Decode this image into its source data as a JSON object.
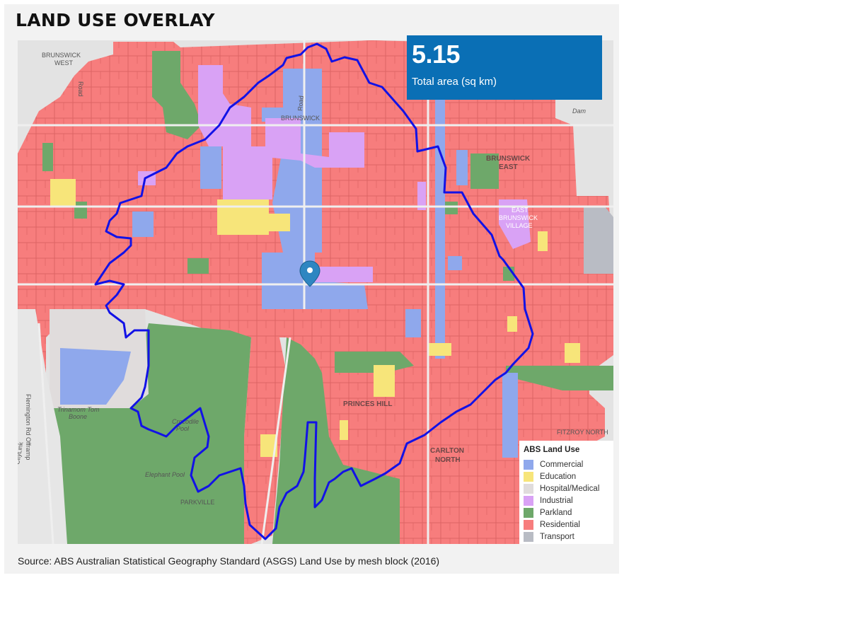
{
  "title": "LAND USE OVERLAY",
  "stat": {
    "value": "5.15",
    "label": "Total area (sq km)",
    "bg_color": "#0a6fb5"
  },
  "legend": {
    "title": "ABS Land Use",
    "items": [
      {
        "label": "Commercial",
        "color": "#8fa8ec"
      },
      {
        "label": "Education",
        "color": "#f7e57a"
      },
      {
        "label": "Hospital/Medical",
        "color": "#e0dcdc"
      },
      {
        "label": "Industrial",
        "color": "#d9a2f5"
      },
      {
        "label": "Parkland",
        "color": "#6ea86a"
      },
      {
        "label": "Residential",
        "color": "#f77d7d"
      },
      {
        "label": "Transport",
        "color": "#b9bcc4"
      }
    ]
  },
  "map_labels": {
    "brunswick_west": "BRUNSWICK WEST",
    "brunswick": "BRUNSWICK",
    "brunswick_east": "BRUNSWICK EAST",
    "east_brunswick_village": "EAST BRUNSWICK VILLAGE",
    "princes_hill": "PRINCES HILL",
    "carlton_north": "CARLTON NORTH",
    "fitzroy_north": "FITZROY NORTH",
    "parkville": "PARKVILLE",
    "dam": "Dam",
    "elephant_pool": "Elephant Pool",
    "crocodile_pool": "Crocodile Pool",
    "trin_tom": "Trinamom Tom Boone",
    "flemington": "Flemington Rd Offramp",
    "citylink": "CityLink",
    "road": "Road",
    "road2": "Road"
  },
  "source": "Source: ABS Australian Statistical Geography Standard (ASGS) Land Use by mesh block (2016)",
  "boundary_color": "#1212e6"
}
